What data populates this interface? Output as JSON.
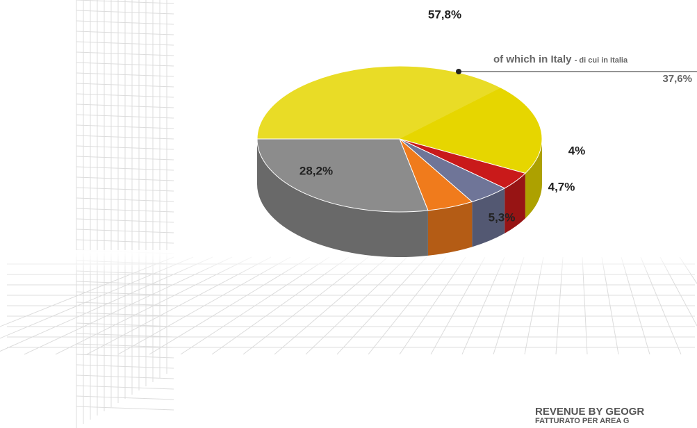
{
  "chart_data": {
    "type": "pie",
    "values": [
      57.8,
      4,
      4.7,
      5.3,
      28.2
    ],
    "value_labels": [
      "57,8%",
      "4%",
      "4,7%",
      "5,3%",
      "28,2%"
    ],
    "colors": [
      "#e6d600",
      "#c91a1a",
      "#6f7598",
      "#f07b1c",
      "#8c8c8c"
    ],
    "annotation": {
      "text": "of which in Italy",
      "subtext": "- di cui in Italia",
      "value": 37.6,
      "value_label": "37,6%"
    },
    "title": "REVENUE BY GEOGR",
    "subtitle": "FATTURATO PER AREA G"
  }
}
